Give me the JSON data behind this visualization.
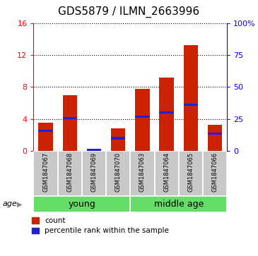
{
  "title": "GDS5879 / ILMN_2663996",
  "samples": [
    "GSM1847067",
    "GSM1847068",
    "GSM1847069",
    "GSM1847070",
    "GSM1847063",
    "GSM1847064",
    "GSM1847065",
    "GSM1847066"
  ],
  "counts": [
    3.5,
    7.0,
    0.05,
    2.8,
    7.8,
    9.2,
    13.2,
    3.3
  ],
  "percentile_values": [
    2.5,
    4.1,
    0.15,
    1.6,
    4.3,
    4.8,
    5.8,
    2.2
  ],
  "group_spans": [
    {
      "label": "young",
      "start": 0,
      "end": 3
    },
    {
      "label": "middle age",
      "start": 4,
      "end": 7
    }
  ],
  "ylim_left": [
    0,
    16
  ],
  "ylim_right": [
    0,
    100
  ],
  "yticks_left": [
    0,
    4,
    8,
    12,
    16
  ],
  "yticks_right": [
    0,
    25,
    50,
    75,
    100
  ],
  "bar_color": "#cc2200",
  "percentile_color": "#2222cc",
  "bar_width": 0.6,
  "label_area_color": "#c8c8c8",
  "group_area_color": "#66dd66",
  "age_label": "age",
  "legend_count_label": "count",
  "legend_percentile_label": "percentile rank within the sample",
  "title_fontsize": 11,
  "tick_fontsize": 8,
  "sample_fontsize": 6,
  "group_fontsize": 9
}
